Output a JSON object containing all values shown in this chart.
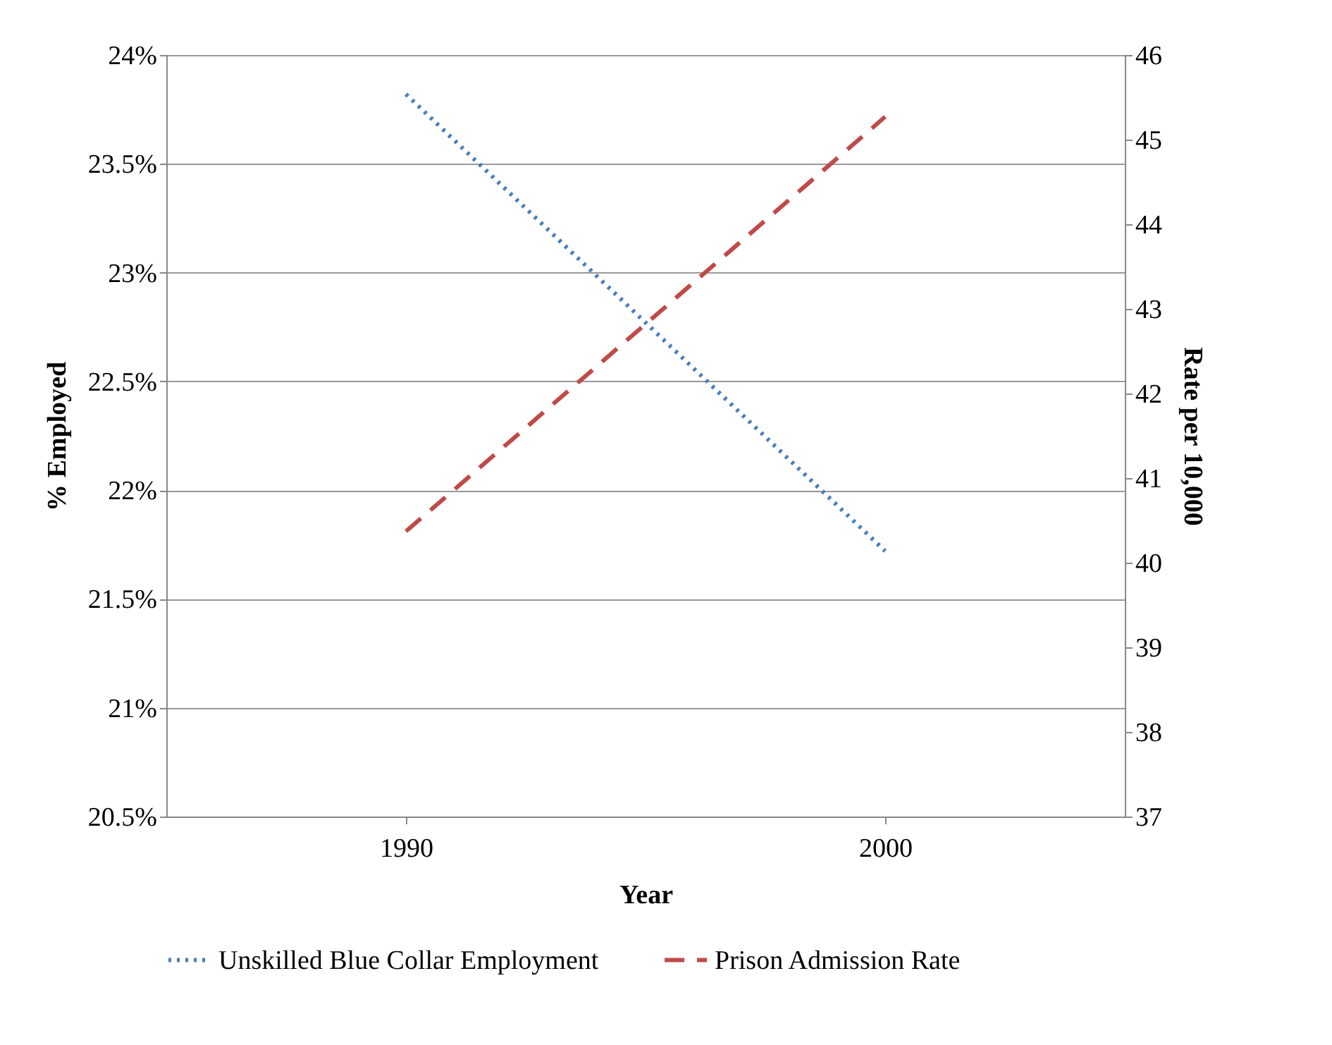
{
  "chart_data": {
    "type": "line",
    "xlabel": "Year",
    "ylabel": "% Employed",
    "y2label": "Rate per 10,000",
    "categories": [
      "1990",
      "2000"
    ],
    "series": [
      {
        "name": "Unskilled Blue Collar Employment",
        "color": "#4a7ebb",
        "line_style": "dotted",
        "values": [
          23.82,
          21.72
        ]
      },
      {
        "name": "Prison Admission Rate",
        "color": "#be4b48",
        "line_style": "dashed",
        "axis": "y2",
        "values": [
          40.37,
          45.27
        ]
      }
    ],
    "ylim": [
      20.5,
      24
    ],
    "yticks": [
      {
        "value": 20.5,
        "label": "20.5%"
      },
      {
        "value": 21,
        "label": "21%"
      },
      {
        "value": 21.5,
        "label": "21.5%"
      },
      {
        "value": 22,
        "label": "22%"
      },
      {
        "value": 22.5,
        "label": "22.5%"
      },
      {
        "value": 23,
        "label": "23%"
      },
      {
        "value": 23.5,
        "label": "23.5%"
      },
      {
        "value": 24,
        "label": "24%"
      }
    ],
    "y2lim": [
      37,
      46
    ],
    "y2ticks": [
      37,
      38,
      39,
      40,
      41,
      42,
      43,
      44,
      45,
      46
    ],
    "grid": "y",
    "legend": "bottom",
    "marker": "none"
  }
}
